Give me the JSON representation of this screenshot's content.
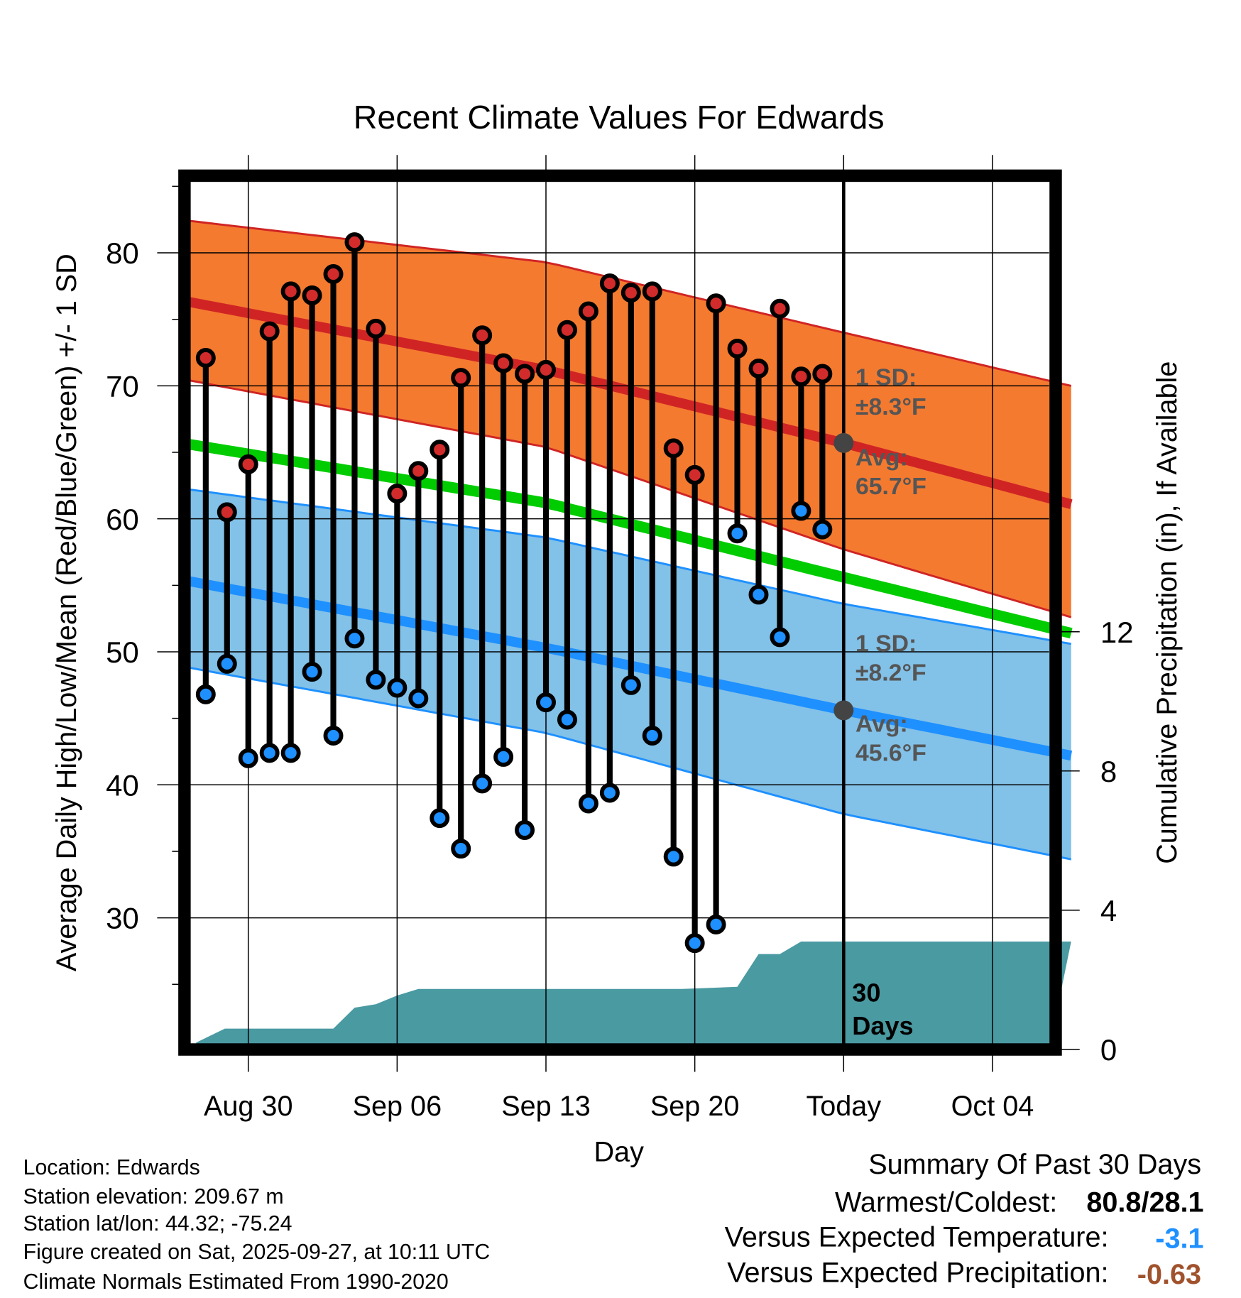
{
  "chart_data": {
    "type": "line",
    "title": "Recent Climate Values For Edwards",
    "xlabel": "Day",
    "ylabel": "Average Daily High/Low/Mean (Red/Blue/Green) +/- 1 SD",
    "ylabel_right": "Cumulative Precipitation (in), If Available",
    "x_unit": "days after Aug 27",
    "xlim": [
      0.25,
      41.7
    ],
    "ylim": [
      20.1,
      85.8
    ],
    "ylim_right": [
      0,
      25.1
    ],
    "x_ticks": [
      {
        "x": 3,
        "label": "Aug 30"
      },
      {
        "x": 10,
        "label": "Sep 06"
      },
      {
        "x": 17,
        "label": "Sep 13"
      },
      {
        "x": 24,
        "label": "Sep 20"
      },
      {
        "x": 31,
        "label": "Today"
      },
      {
        "x": 38,
        "label": "Oct 04"
      }
    ],
    "y_ticks": [
      30,
      40,
      50,
      60,
      70,
      80
    ],
    "y_ticks_right": [
      0,
      4,
      8,
      12
    ],
    "grid": true,
    "daily": {
      "x": [
        1,
        2,
        3,
        4,
        5,
        6,
        7,
        8,
        9,
        10,
        11,
        12,
        13,
        14,
        15,
        16,
        17,
        18,
        19,
        20,
        21,
        22,
        23,
        24,
        25,
        26,
        27,
        28,
        29,
        30
      ],
      "high": [
        72.1,
        60.5,
        64.1,
        74.1,
        77.1,
        76.8,
        78.4,
        80.8,
        74.3,
        61.9,
        63.6,
        65.2,
        70.6,
        73.8,
        71.7,
        70.9,
        71.2,
        74.2,
        75.6,
        77.7,
        77.0,
        77.1,
        65.3,
        63.3,
        76.2,
        72.8,
        71.3,
        75.8,
        70.7,
        70.9
      ],
      "low": [
        46.8,
        49.1,
        42.0,
        42.4,
        42.4,
        48.5,
        43.7,
        51.0,
        47.9,
        47.3,
        46.5,
        37.5,
        35.2,
        40.1,
        42.1,
        36.6,
        46.2,
        44.9,
        38.6,
        39.4,
        47.5,
        43.7,
        34.6,
        28.1,
        29.5,
        58.9,
        54.3,
        51.1,
        60.6,
        59.2
      ]
    },
    "normals": {
      "x": [
        0.25,
        17,
        31,
        41.7
      ],
      "high_avg": [
        76.3,
        71.2,
        65.7,
        61.1
      ],
      "high_upper": [
        82.4,
        79.3,
        74.0,
        70.0
      ],
      "high_lower": [
        70.4,
        65.4,
        57.7,
        52.6
      ],
      "mean": [
        65.6,
        61.2,
        55.6,
        51.4
      ],
      "low_avg": [
        55.3,
        50.3,
        45.6,
        42.2
      ],
      "low_upper": [
        62.2,
        58.6,
        53.6,
        50.6
      ],
      "low_lower": [
        48.8,
        43.9,
        37.8,
        34.4
      ]
    },
    "precip_cumulative": {
      "x": [
        0.55,
        1.9,
        7.0,
        8.0,
        9.0,
        10.0,
        11.0,
        23.4,
        26.0,
        27.0,
        28.0,
        29.0,
        41.7
      ],
      "y": [
        0.2,
        0.6,
        0.6,
        1.2,
        1.3,
        1.55,
        1.74,
        1.74,
        1.8,
        2.74,
        2.74,
        3.1,
        3.1
      ]
    },
    "today_x": 31,
    "annotations": {
      "high_sd_label": "1 SD:",
      "high_sd_value": "±8.3°F",
      "high_avg_label": "Avg:",
      "high_avg_value": "65.7°F",
      "low_sd_label": "1 SD:",
      "low_sd_value": "±8.2°F",
      "low_avg_label": "Avg:",
      "low_avg_value": "45.6°F",
      "days_count": "30",
      "days_label": "Days"
    }
  },
  "colors": {
    "high_band": "#F47A30",
    "high_line": "#D02424",
    "mean_line": "#00CC00",
    "low_band": "#82C1E8",
    "low_line": "#1E90FF",
    "precip": "#4A9AA2",
    "high_dot": "#D22B2B",
    "low_dot": "#1E90FF",
    "neg_temp": "#1E90FF",
    "neg_precip": "#A0522D"
  },
  "footer": {
    "location": "Location: Edwards",
    "elevation": "Station elevation: 209.67 m",
    "latlon": "Station lat/lon: 44.32; -75.24",
    "created": "Figure created on Sat, 2025-09-27, at 10:11 UTC",
    "normals": "Climate Normals Estimated From 1990-2020"
  },
  "summary": {
    "title": "Summary Of Past 30 Days",
    "warmest_coldest_label": "Warmest/Coldest:",
    "warmest_coldest_value": "80.8/28.1",
    "temp_label": "Versus Expected Temperature:",
    "temp_value": "-3.1",
    "precip_label": "Versus Expected Precipitation:",
    "precip_value": "-0.63"
  }
}
